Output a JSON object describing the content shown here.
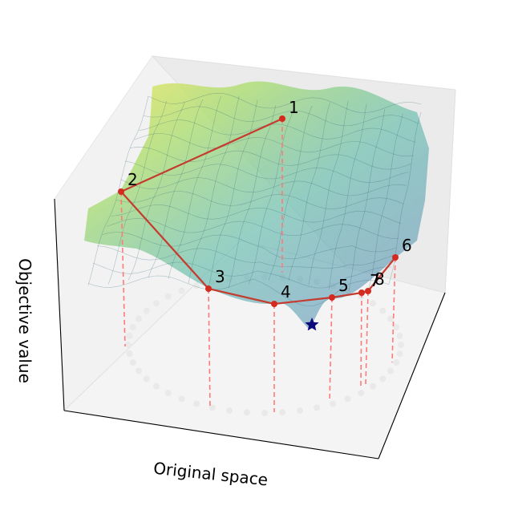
{
  "axes": {
    "xlabel": "Original space",
    "zlabel": "Objective value"
  },
  "points": [
    {
      "label": "1"
    },
    {
      "label": "2"
    },
    {
      "label": "3"
    },
    {
      "label": "4"
    },
    {
      "label": "5"
    },
    {
      "label": "6"
    },
    {
      "label": "7"
    },
    {
      "label": "8"
    }
  ],
  "colors": {
    "path": "#c43c30",
    "point": "#d42a1f",
    "drop_line": "#ff7a7a",
    "optimum_star": "#0a0a7a",
    "surface_high": "#fde725",
    "surface_mid": "#21918c",
    "surface_low": "#3b528b"
  },
  "markers": {
    "optimum": "star-icon"
  }
}
